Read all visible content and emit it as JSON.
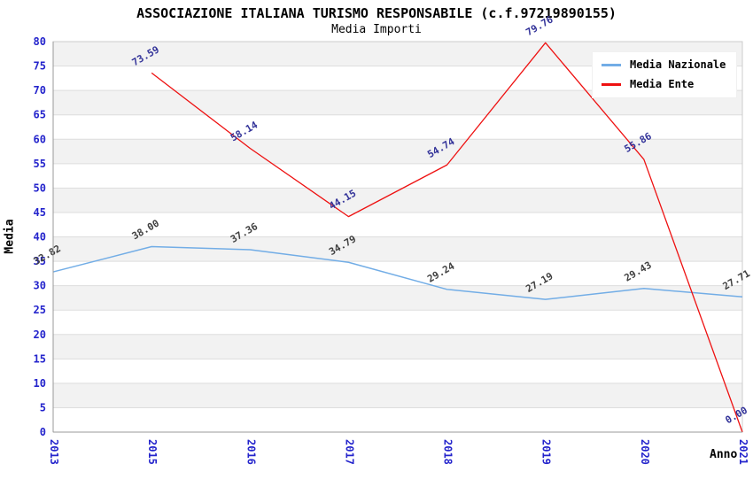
{
  "title": "ASSOCIAZIONE ITALIANA TURISMO RESPONSABILE (c.f.97219890155)",
  "subtitle": "Media Importi",
  "chart_data": {
    "type": "line",
    "categories": [
      "2013",
      "2015",
      "2016",
      "2017",
      "2018",
      "2019",
      "2020",
      "2021"
    ],
    "series": [
      {
        "name": "Media Nazionale",
        "color": "#72ade6",
        "label_color": "#404040",
        "values": [
          32.82,
          38.0,
          37.36,
          34.79,
          29.24,
          27.19,
          29.43,
          27.71
        ]
      },
      {
        "name": "Media Ente",
        "color": "#ee1111",
        "label_color": "#333399",
        "values": [
          null,
          73.59,
          58.14,
          44.15,
          54.74,
          79.76,
          55.86,
          0.0
        ]
      }
    ],
    "xlabel": "Anno",
    "ylabel": "Media",
    "ylim": [
      0,
      80
    ],
    "ytick_step": 5,
    "legend_position": "top-right",
    "grid": "horizontal-bands",
    "band_color_odd": "#f2f2f2",
    "band_color_even": "#ffffff",
    "gridline_color": "#dddddd",
    "axis_color": "#999999",
    "border_color": "#cccccc",
    "tick_label_color": "#2424cc",
    "value_label_decimals": 2
  }
}
